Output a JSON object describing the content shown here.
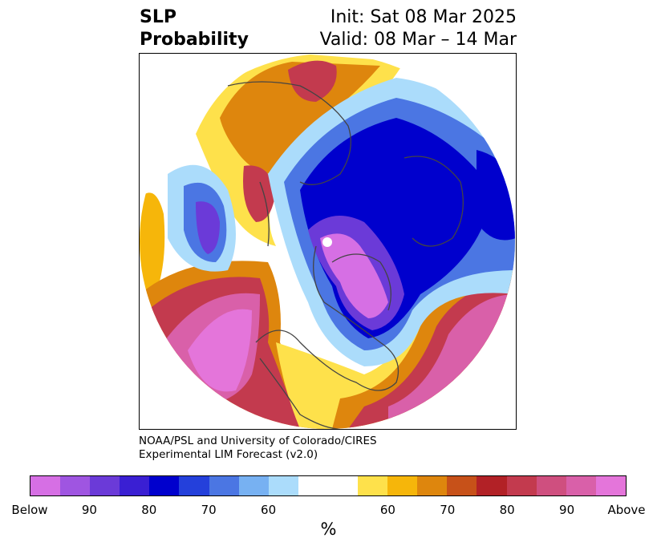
{
  "header": {
    "title_line1": "SLP",
    "title_line2": "Probability",
    "init": "Init: Sat 08 Mar 2025",
    "valid": "Valid: 08 Mar – 14 Mar"
  },
  "credit": {
    "line1": "NOAA/PSL and University of Colorado/CIRES",
    "line2": "Experimental LIM Forecast (v2.0)"
  },
  "colorbar": {
    "colors": [
      "#d66fe4",
      "#9f55e1",
      "#6b3ad8",
      "#3a1fd3",
      "#0000cd",
      "#2440db",
      "#4b76e3",
      "#77b1f2",
      "#abdcfb",
      "#ffffff",
      "#fee14b",
      "#f6b60a",
      "#de860d",
      "#c75119",
      "#b22126",
      "#c33a4e",
      "#cf4f7f",
      "#d960a9",
      "#e475da"
    ],
    "tick_labels": [
      "Below",
      "90",
      "80",
      "70",
      "60",
      "60",
      "70",
      "80",
      "90",
      "Above"
    ],
    "unit": "%"
  },
  "map": {
    "projection": "north-polar-stereographic",
    "field": "SLP probability"
  }
}
